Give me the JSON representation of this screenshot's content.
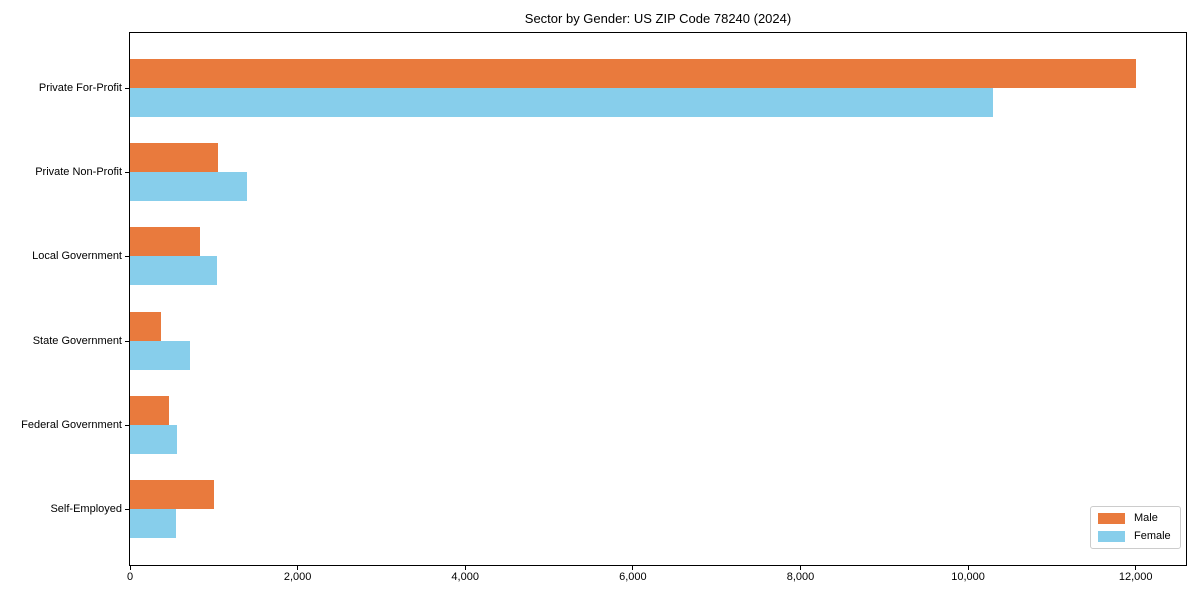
{
  "title": "Sector by Gender: US ZIP Code 78240 (2024)",
  "chart_data": {
    "type": "bar",
    "orientation": "horizontal",
    "title": "Sector by Gender: US ZIP Code 78240 (2024)",
    "xlabel": "",
    "ylabel": "",
    "categories": [
      "Private For-Profit",
      "Private Non-Profit",
      "Local Government",
      "State Government",
      "Federal Government",
      "Self-Employed"
    ],
    "series": [
      {
        "name": "Male",
        "color": "#e97a3d",
        "values": [
          12000,
          1050,
          830,
          370,
          460,
          1000
        ]
      },
      {
        "name": "Female",
        "color": "#87ceeb",
        "values": [
          10300,
          1390,
          1040,
          710,
          560,
          550
        ]
      }
    ],
    "xlim": [
      0,
      12600
    ],
    "x_ticks": [
      0,
      2000,
      4000,
      6000,
      8000,
      10000,
      12000
    ],
    "x_tick_labels": [
      "0",
      "2,000",
      "4,000",
      "6,000",
      "8,000",
      "10,000",
      "12,000"
    ],
    "legend_position": "lower right",
    "grid": false
  },
  "colors": {
    "male": "#e97a3d",
    "female": "#87ceeb",
    "spine": "#000000",
    "legend_border": "#cccccc",
    "background": "#ffffff"
  }
}
